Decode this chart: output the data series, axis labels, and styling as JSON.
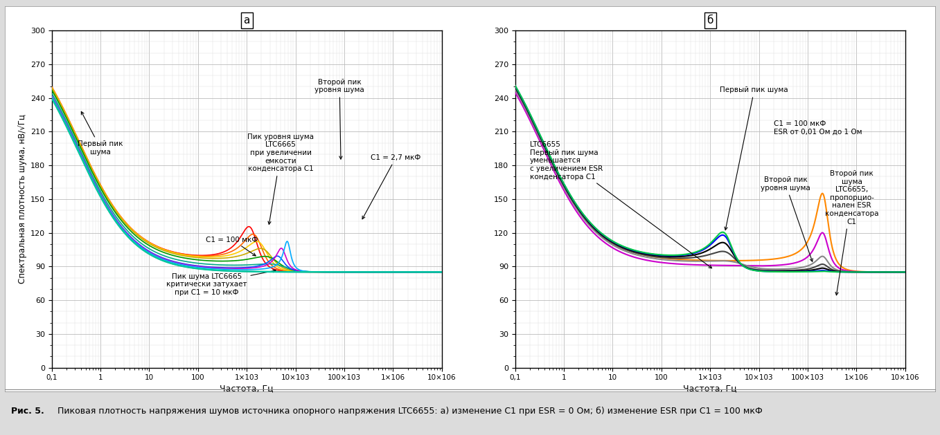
{
  "title_a": "а",
  "title_b": "б",
  "ylabel": "Спектральная плотность шума, нВ/√Гц",
  "xlabel": "Частота, Гц",
  "ylim": [
    0,
    300
  ],
  "yticks": [
    0,
    30,
    60,
    90,
    120,
    150,
    180,
    210,
    240,
    270,
    300
  ],
  "xtick_labels": [
    "0,1",
    "1",
    "10",
    "100",
    "1×103",
    "10×103",
    "100×103",
    "1×106",
    "10×106"
  ],
  "xtick_vals": [
    0.1,
    1,
    10,
    100,
    1000,
    10000,
    100000,
    1000000,
    10000000
  ],
  "caption_bold": "Рис. 5.",
  "caption_normal": " Пиковая плотность напряжения шумов источника опорного напряжения LTC6655: а) изменение C1 при ESR = 0 Ом; б) изменение ESR при C1 = 100 мкФ"
}
